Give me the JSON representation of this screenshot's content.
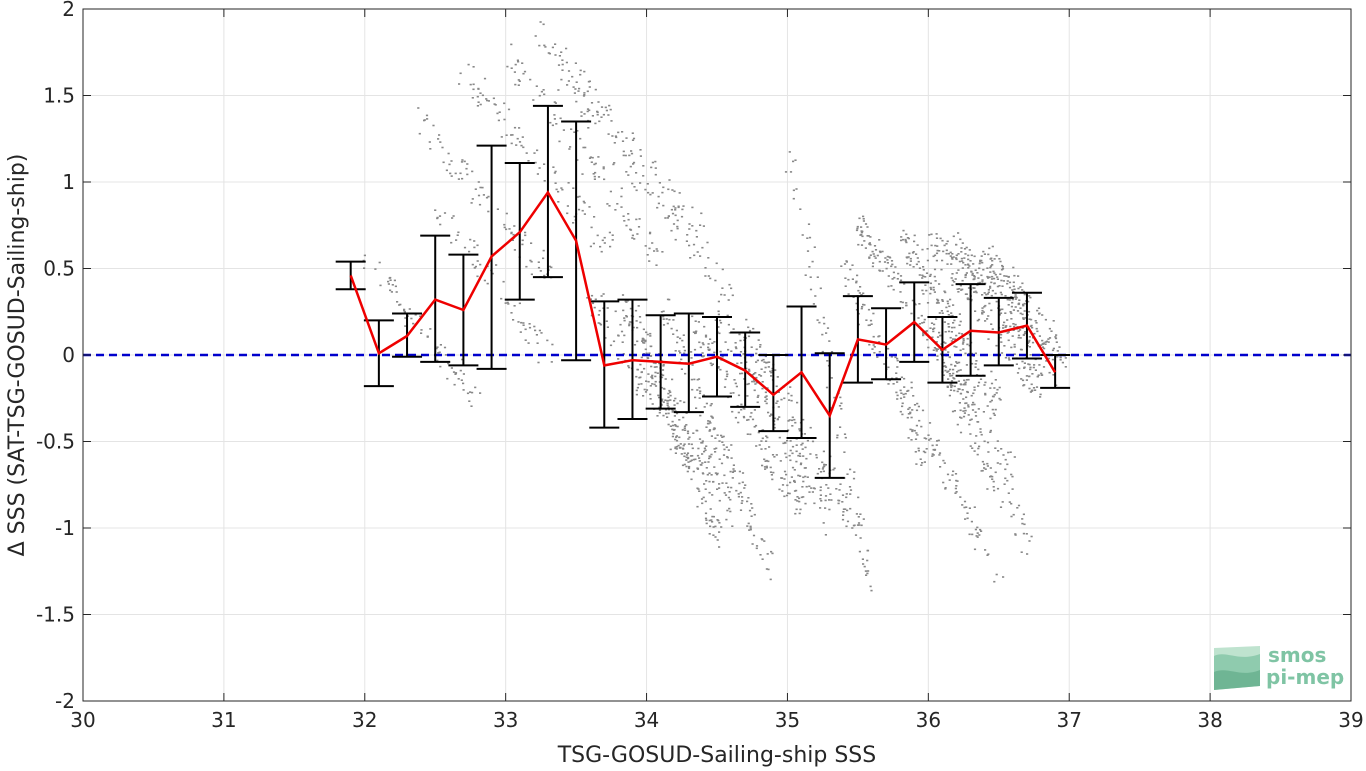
{
  "chart_data": {
    "type": "scatter",
    "xlabel": "TSG-GOSUD-Sailing-ship SSS",
    "ylabel": "Δ SSS (SAT-TSG-GOSUD-Sailing-ship)",
    "xlim": [
      30,
      39
    ],
    "ylim": [
      -2,
      2
    ],
    "xticks": [
      "30",
      "31",
      "32",
      "33",
      "34",
      "35",
      "36",
      "37",
      "38",
      "39"
    ],
    "yticks": [
      "2",
      "1.5",
      "1",
      "0.5",
      "0",
      "-0.5",
      "-1",
      "-1.5",
      "-2"
    ],
    "grid": true,
    "reference_line": {
      "y": 0,
      "style": "dashed",
      "color": "#0000cc"
    },
    "colors": {
      "points": "#888888",
      "mean_line": "#ee0000",
      "error_bars": "#000000",
      "grid": "#e4e4e4"
    },
    "binned": {
      "x": [
        31.9,
        32.1,
        32.3,
        32.5,
        32.7,
        32.9,
        33.1,
        33.3,
        33.5,
        33.7,
        33.9,
        34.1,
        34.3,
        34.5,
        34.7,
        34.9,
        35.1,
        35.3,
        35.5,
        35.7,
        35.9,
        36.1,
        36.3,
        36.5,
        36.7,
        36.9
      ],
      "mean": [
        0.46,
        0.01,
        0.11,
        0.32,
        0.26,
        0.57,
        0.71,
        0.94,
        0.66,
        -0.06,
        -0.03,
        -0.04,
        -0.05,
        -0.01,
        -0.09,
        -0.23,
        -0.1,
        -0.35,
        0.09,
        0.06,
        0.19,
        0.03,
        0.14,
        0.13,
        0.17,
        -0.1
      ],
      "upper": [
        0.54,
        0.2,
        0.24,
        0.69,
        0.58,
        1.21,
        1.11,
        1.44,
        1.35,
        0.31,
        0.32,
        0.23,
        0.24,
        0.22,
        0.13,
        0.0,
        0.28,
        0.01,
        0.34,
        0.27,
        0.42,
        0.22,
        0.41,
        0.33,
        0.36,
        0.0
      ],
      "lower": [
        0.38,
        -0.18,
        -0.01,
        -0.04,
        -0.06,
        -0.08,
        0.32,
        0.45,
        -0.03,
        -0.42,
        -0.37,
        -0.31,
        -0.33,
        -0.24,
        -0.3,
        -0.44,
        -0.48,
        -0.71,
        -0.16,
        -0.14,
        -0.04,
        -0.16,
        -0.12,
        -0.06,
        -0.02,
        -0.19
      ]
    },
    "scatter_segments": [
      {
        "x1": 32.0,
        "y1": 0.55,
        "x2": 32.8,
        "y2": -0.25,
        "count": 70
      },
      {
        "x1": 32.4,
        "y1": 1.35,
        "x2": 33.3,
        "y2": 0.45,
        "count": 80
      },
      {
        "x1": 32.5,
        "y1": 0.85,
        "x2": 33.3,
        "y2": 0.0,
        "count": 60
      },
      {
        "x1": 32.7,
        "y1": 1.65,
        "x2": 33.8,
        "y2": 0.55,
        "count": 90
      },
      {
        "x1": 33.0,
        "y1": 1.75,
        "x2": 34.1,
        "y2": 0.55,
        "count": 90
      },
      {
        "x1": 33.2,
        "y1": 1.9,
        "x2": 34.4,
        "y2": 0.7,
        "count": 90
      },
      {
        "x1": 33.4,
        "y1": 1.6,
        "x2": 34.6,
        "y2": 0.35,
        "count": 90
      },
      {
        "x1": 33.6,
        "y1": 0.35,
        "x2": 34.3,
        "y2": -0.6,
        "count": 100
      },
      {
        "x1": 33.8,
        "y1": 0.3,
        "x2": 34.6,
        "y2": -0.9,
        "count": 140
      },
      {
        "x1": 33.9,
        "y1": 0.25,
        "x2": 34.5,
        "y2": -1.05,
        "count": 120
      },
      {
        "x1": 34.1,
        "y1": 0.3,
        "x2": 34.9,
        "y2": -1.25,
        "count": 140
      },
      {
        "x1": 34.3,
        "y1": 0.2,
        "x2": 35.1,
        "y2": -0.9,
        "count": 140
      },
      {
        "x1": 34.5,
        "y1": 0.25,
        "x2": 35.3,
        "y2": -0.95,
        "count": 140
      },
      {
        "x1": 34.7,
        "y1": 0.15,
        "x2": 35.5,
        "y2": -1.0,
        "count": 120
      },
      {
        "x1": 35.0,
        "y1": 1.2,
        "x2": 35.6,
        "y2": -1.4,
        "count": 80
      },
      {
        "x1": 35.4,
        "y1": 0.5,
        "x2": 36.0,
        "y2": -0.65,
        "count": 100
      },
      {
        "x1": 35.5,
        "y1": 0.75,
        "x2": 36.3,
        "y2": -0.25,
        "count": 160
      },
      {
        "x1": 35.8,
        "y1": 0.7,
        "x2": 36.5,
        "y2": -0.3,
        "count": 160
      },
      {
        "x1": 36.0,
        "y1": 0.7,
        "x2": 36.8,
        "y2": -0.2,
        "count": 160
      },
      {
        "x1": 36.2,
        "y1": 0.65,
        "x2": 36.9,
        "y2": -0.1,
        "count": 150
      },
      {
        "x1": 36.4,
        "y1": 0.6,
        "x2": 36.95,
        "y2": 0.0,
        "count": 120
      },
      {
        "x1": 35.7,
        "y1": 0.0,
        "x2": 36.5,
        "y2": -1.3,
        "count": 90
      },
      {
        "x1": 36.0,
        "y1": 0.1,
        "x2": 36.6,
        "y2": -0.7,
        "count": 70
      },
      {
        "x1": 36.1,
        "y1": -0.1,
        "x2": 36.7,
        "y2": -1.1,
        "count": 80
      }
    ]
  },
  "logo": {
    "line1": "smos",
    "line2": "pi-mep"
  }
}
